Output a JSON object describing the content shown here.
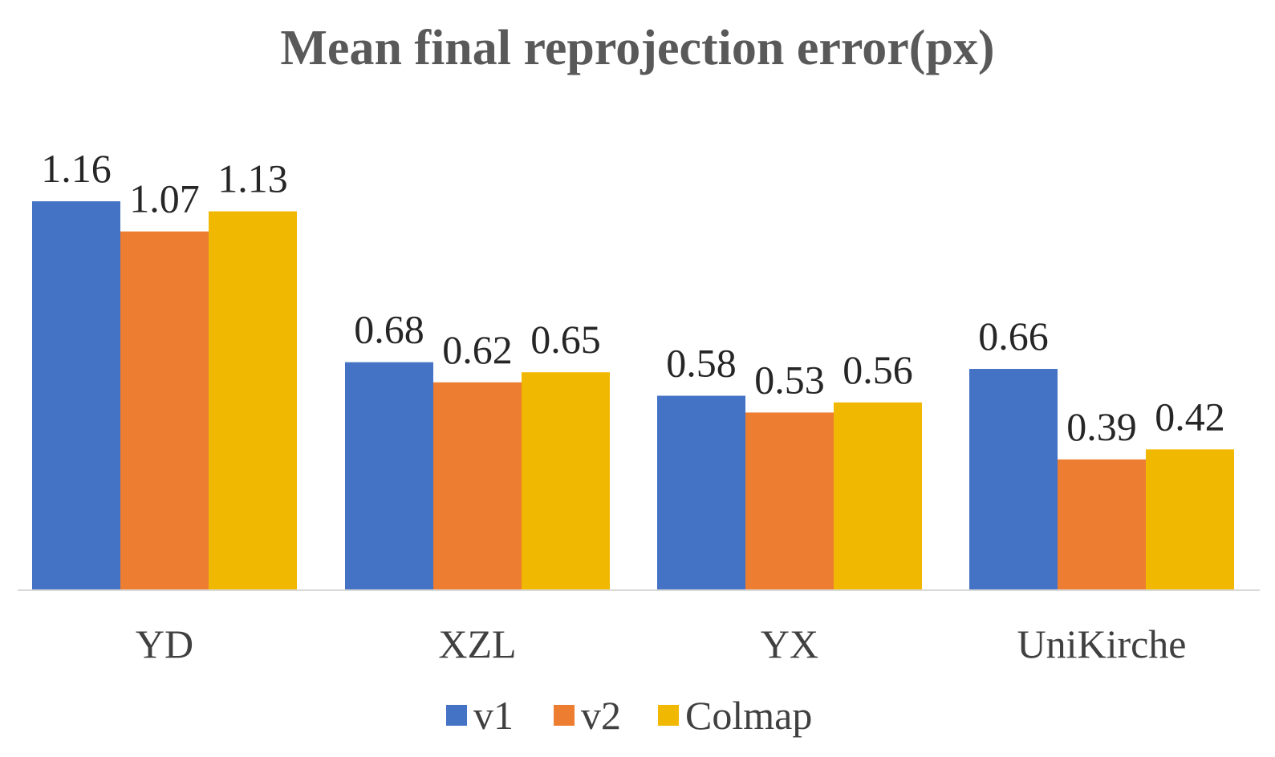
{
  "chart_data": {
    "type": "bar",
    "title": "Mean final reprojection error(px)",
    "xlabel": "",
    "ylabel": "",
    "ylim": [
      0,
      1.3
    ],
    "grid": false,
    "legend_position": "bottom",
    "categories": [
      "YD",
      "XZL",
      "YX",
      "UniKirche"
    ],
    "series": [
      {
        "name": "v1",
        "color": "#4472C4",
        "values": [
          1.16,
          0.68,
          0.58,
          0.66
        ]
      },
      {
        "name": "v2",
        "color": "#ED7D31",
        "values": [
          1.07,
          0.62,
          0.53,
          0.39
        ]
      },
      {
        "name": "Colmap",
        "color": "#F0B800",
        "values": [
          1.13,
          0.65,
          0.56,
          0.42
        ]
      }
    ],
    "data_labels": [
      [
        "1.16",
        "0.68",
        "0.58",
        "0.66"
      ],
      [
        "1.07",
        "0.62",
        "0.53",
        "0.39"
      ],
      [
        "1.13",
        "0.65",
        "0.56",
        "0.42"
      ]
    ],
    "axis_color": "#D9D9D9"
  }
}
